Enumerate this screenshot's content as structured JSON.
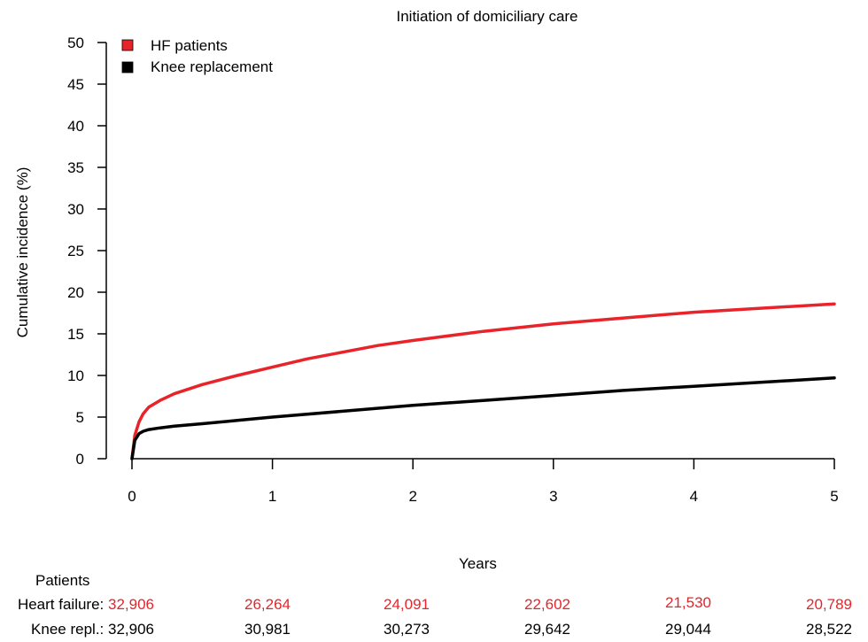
{
  "colors": {
    "hf": "#e8242a",
    "knee": "#000000",
    "axis": "#000000"
  },
  "chart_data": {
    "type": "line",
    "title": "Initiation of domiciliary care",
    "xlabel": "Years",
    "ylabel": "Cumulative incidence (%)",
    "xlim": [
      0,
      5
    ],
    "ylim": [
      0,
      50
    ],
    "xticks": [
      0,
      1,
      2,
      3,
      4,
      5
    ],
    "yticks": [
      0,
      5,
      10,
      15,
      20,
      25,
      30,
      35,
      40,
      45,
      50
    ],
    "grid": false,
    "legend_position": "top-left",
    "series": [
      {
        "name": "HF patients",
        "color": "#e8242a",
        "x": [
          0,
          0.02,
          0.05,
          0.08,
          0.12,
          0.2,
          0.3,
          0.5,
          0.75,
          1.0,
          1.25,
          1.5,
          1.75,
          2.0,
          2.5,
          3.0,
          3.5,
          4.0,
          4.5,
          5.0
        ],
        "y": [
          0,
          2.8,
          4.4,
          5.4,
          6.2,
          7.0,
          7.8,
          8.9,
          10.0,
          11.0,
          12.0,
          12.8,
          13.6,
          14.2,
          15.3,
          16.2,
          16.9,
          17.6,
          18.1,
          18.6
        ]
      },
      {
        "name": "Knee replacement",
        "color": "#000000",
        "x": [
          0,
          0.02,
          0.05,
          0.08,
          0.12,
          0.2,
          0.3,
          0.5,
          0.75,
          1.0,
          1.5,
          2.0,
          2.5,
          3.0,
          3.5,
          4.0,
          4.5,
          5.0
        ],
        "y": [
          0,
          2.2,
          3.0,
          3.3,
          3.5,
          3.7,
          3.9,
          4.2,
          4.6,
          5.0,
          5.7,
          6.4,
          7.0,
          7.6,
          8.2,
          8.7,
          9.2,
          9.7
        ]
      }
    ]
  },
  "risk_table": {
    "header": "Patients",
    "rows": [
      {
        "label": "Heart failure: ",
        "color": "#e8242a",
        "values": [
          "32,906",
          "26,264",
          "24,091",
          "22,602",
          "21,530",
          "20,789"
        ]
      },
      {
        "label": "Knee repl.: ",
        "color": "#000000",
        "values": [
          "32,906",
          "30,981",
          "30,273",
          "29,642",
          "29,044",
          "28,522"
        ]
      }
    ]
  }
}
